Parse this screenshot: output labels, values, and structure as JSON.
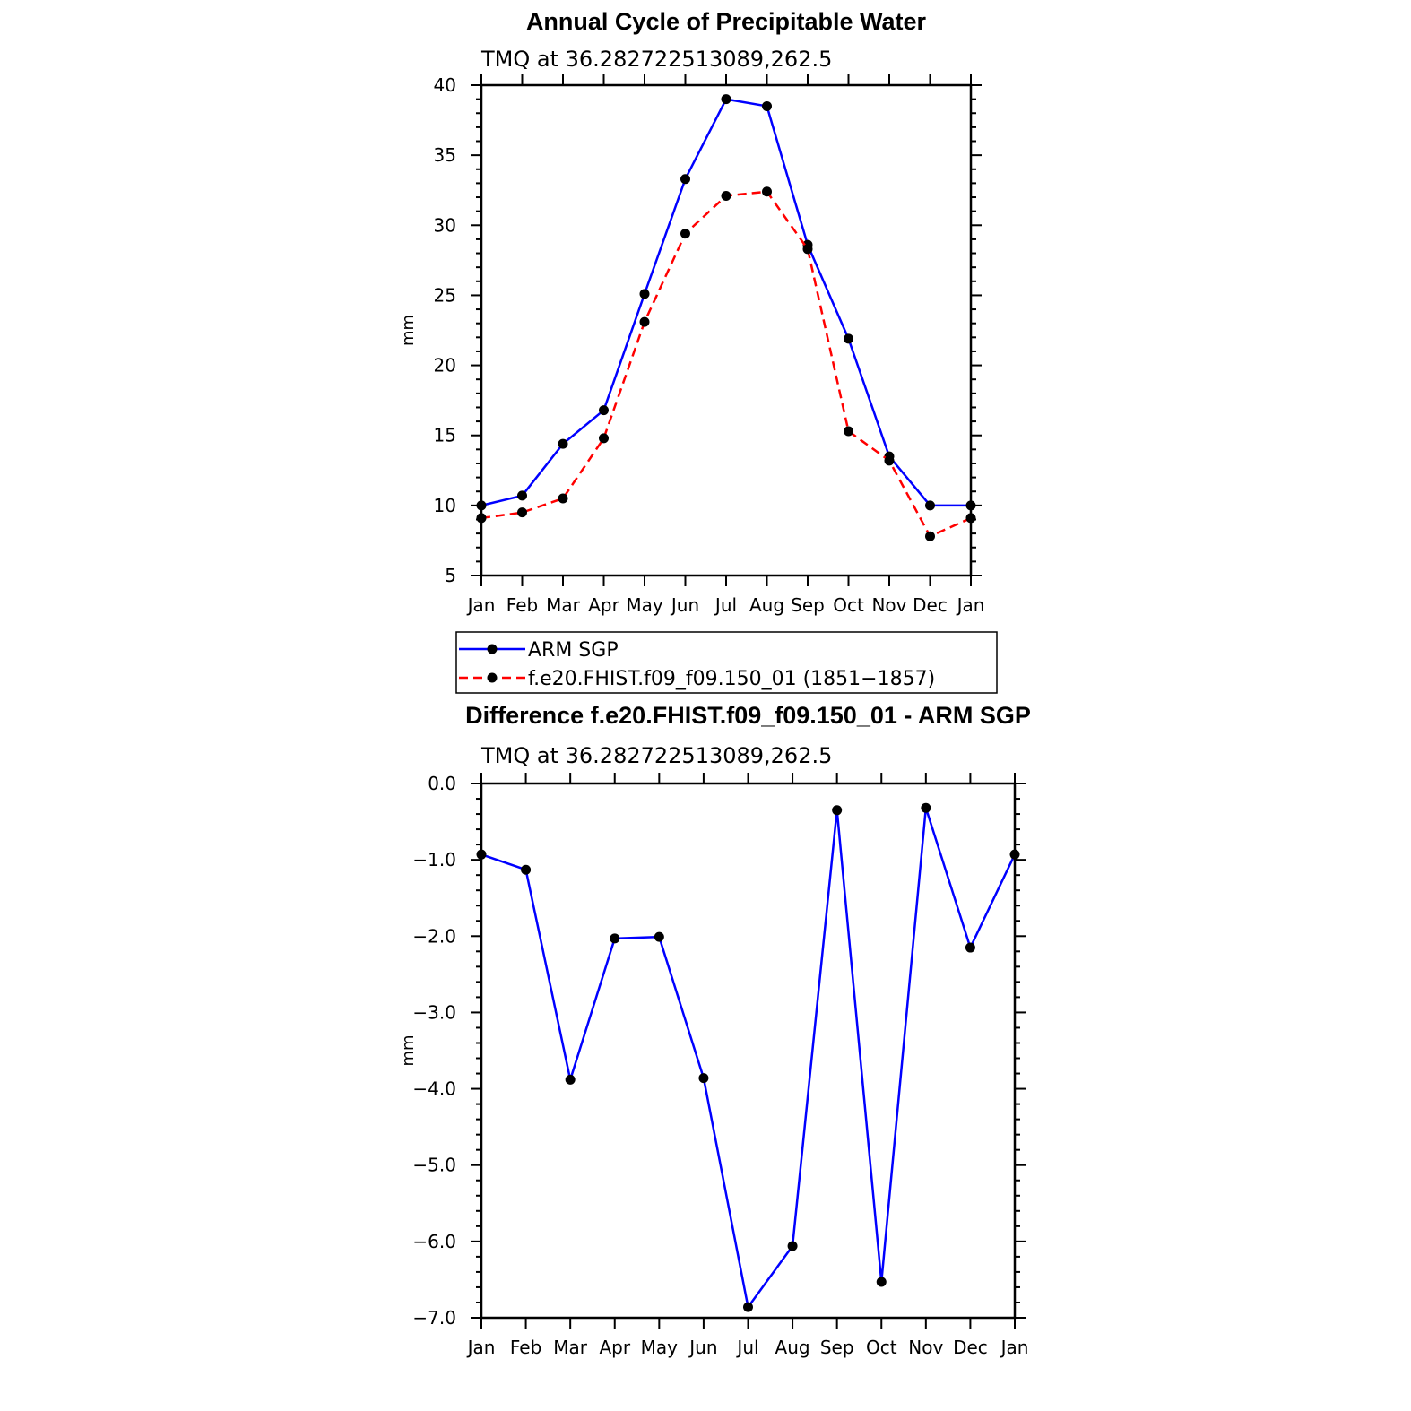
{
  "chart_data": [
    {
      "type": "line",
      "title": "Annual Cycle of Precipitable Water",
      "subtitle": "TMQ at 36.282722513089,262.5",
      "xlabel": "",
      "ylabel": "mm",
      "categories": [
        "Jan",
        "Feb",
        "Mar",
        "Apr",
        "May",
        "Jun",
        "Jul",
        "Aug",
        "Sep",
        "Oct",
        "Nov",
        "Dec",
        "Jan"
      ],
      "ylim": [
        5,
        40
      ],
      "yticks": [
        5,
        10,
        15,
        20,
        25,
        30,
        35,
        40
      ],
      "ytick_labels": [
        "5",
        "10",
        "15",
        "20",
        "25",
        "30",
        "35",
        "40"
      ],
      "legend": "below",
      "series": [
        {
          "name": "ARM SGP",
          "color": "#0000ff",
          "dash": "solid",
          "values": [
            10.0,
            10.7,
            14.4,
            16.8,
            25.1,
            33.3,
            39.0,
            38.5,
            28.6,
            21.9,
            13.5,
            10.0,
            10.0
          ]
        },
        {
          "name": "f.e20.FHIST.f09_f09.150_01 (1851−1857)",
          "color": "#ff0000",
          "dash": "dashed",
          "values": [
            9.1,
            9.5,
            10.5,
            14.8,
            23.1,
            29.4,
            32.1,
            32.4,
            28.3,
            15.3,
            13.2,
            7.8,
            9.1
          ]
        }
      ]
    },
    {
      "type": "line",
      "title": "Difference f.e20.FHIST.f09_f09.150_01 - ARM SGP",
      "subtitle": "TMQ at 36.282722513089,262.5",
      "xlabel": "",
      "ylabel": "mm",
      "categories": [
        "Jan",
        "Feb",
        "Mar",
        "Apr",
        "May",
        "Jun",
        "Jul",
        "Aug",
        "Sep",
        "Oct",
        "Nov",
        "Dec",
        "Jan"
      ],
      "ylim": [
        -7.0,
        0.0
      ],
      "yticks": [
        0,
        -1,
        -2,
        -3,
        -4,
        -5,
        -6,
        -7
      ],
      "ytick_labels": [
        "0.0",
        "−1.0",
        "−2.0",
        "−3.0",
        "−4.0",
        "−5.0",
        "−6.0",
        "−7.0"
      ],
      "series": [
        {
          "name": "",
          "color": "#0000ff",
          "dash": "solid",
          "values": [
            -0.93,
            -1.13,
            -3.88,
            -2.03,
            -2.01,
            -3.86,
            -6.86,
            -6.06,
            -0.35,
            -6.53,
            -0.32,
            -2.15,
            -0.93
          ]
        }
      ]
    }
  ]
}
